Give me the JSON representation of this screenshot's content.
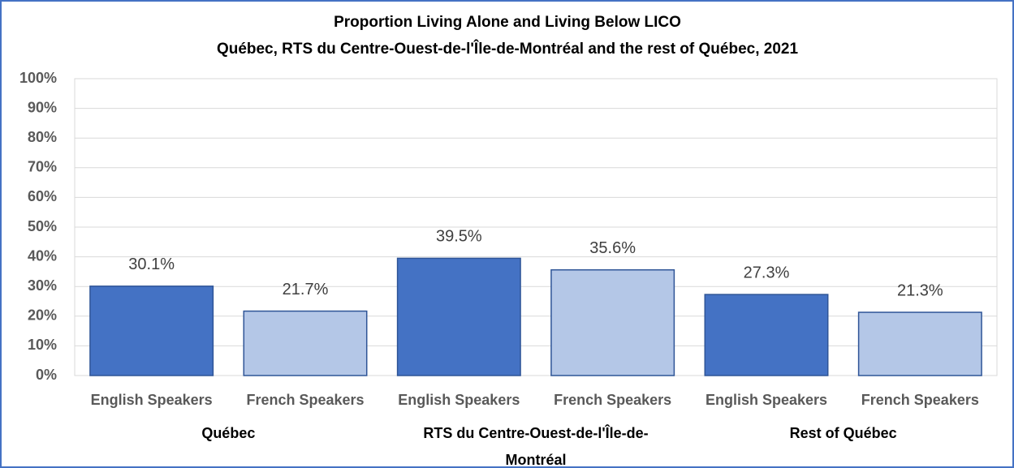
{
  "chart_data": {
    "type": "bar",
    "title": "Proportion  Living Alone and Living Below LICO",
    "subtitle": "Québec, RTS du Centre-Ouest-de-l'Île-de-Montréal and the rest of Québec, 2021",
    "categories": [
      "English Speakers",
      "French Speakers",
      "English Speakers",
      "French Speakers",
      "English Speakers",
      "French Speakers"
    ],
    "groups": [
      "Québec",
      "RTS du Centre-Ouest-de-l'Île-de-Montréal",
      "Rest of Québec"
    ],
    "values": [
      30.1,
      21.7,
      39.5,
      35.6,
      27.3,
      21.3
    ],
    "value_labels": [
      "30.1%",
      "21.7%",
      "39.5%",
      "35.6%",
      "27.3%",
      "21.3%"
    ],
    "colors": [
      "#4472c4",
      "#b4c7e7",
      "#4472c4",
      "#b4c7e7",
      "#4472c4",
      "#b4c7e7"
    ],
    "ylim": [
      0,
      100
    ],
    "yticks": [
      {
        "value": 0,
        "label": "0%"
      },
      {
        "value": 10,
        "label": "10%"
      },
      {
        "value": 20,
        "label": "20%"
      },
      {
        "value": 30,
        "label": "30%"
      },
      {
        "value": 40,
        "label": "40%"
      },
      {
        "value": 50,
        "label": "50%"
      },
      {
        "value": 60,
        "label": "60%"
      },
      {
        "value": 70,
        "label": "70%"
      },
      {
        "value": 80,
        "label": "80%"
      },
      {
        "value": 90,
        "label": "90%"
      },
      {
        "value": 100,
        "label": "100%"
      }
    ],
    "grid": true
  }
}
